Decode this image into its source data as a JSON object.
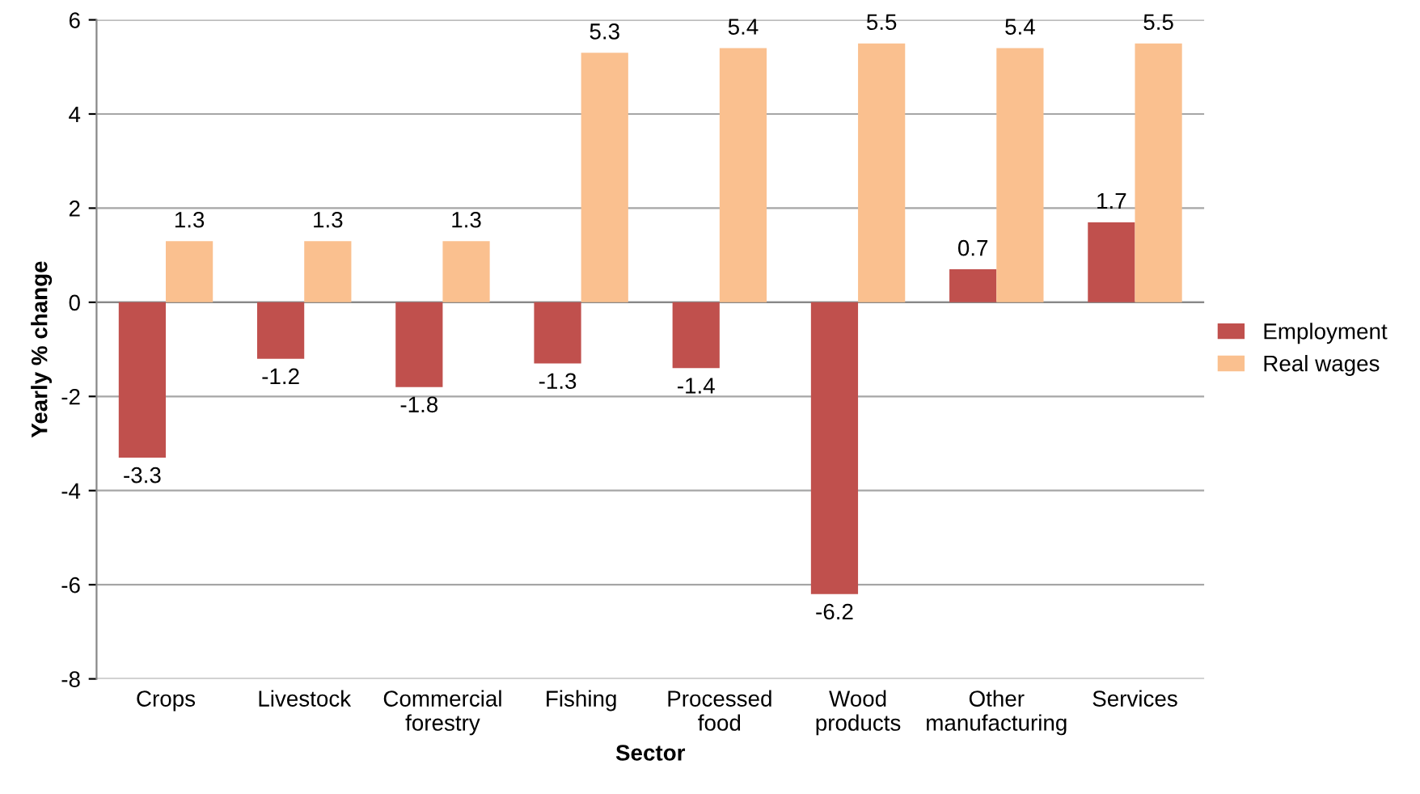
{
  "chart_data": {
    "type": "bar",
    "xlabel": "Sector",
    "ylabel": "Yearly % change",
    "categories": [
      "Crops",
      "Livestock",
      "Commercial forestry",
      "Fishing",
      "Processed food",
      "Wood products",
      "Other manufacturing",
      "Services"
    ],
    "series": [
      {
        "name": "Employment",
        "color": "#c0504d",
        "values": [
          -3.3,
          -1.2,
          -1.8,
          -1.3,
          -1.4,
          -6.2,
          0.7,
          1.7
        ]
      },
      {
        "name": "Real wages",
        "color": "#fac08f",
        "values": [
          1.3,
          1.3,
          1.3,
          5.3,
          5.4,
          5.5,
          5.4,
          5.5
        ]
      }
    ],
    "ylim": [
      -8,
      6
    ],
    "yticks": [
      -8,
      -6,
      -4,
      -2,
      0,
      2,
      4,
      6
    ],
    "grid": "y",
    "legend": "right",
    "data_labels": true
  }
}
